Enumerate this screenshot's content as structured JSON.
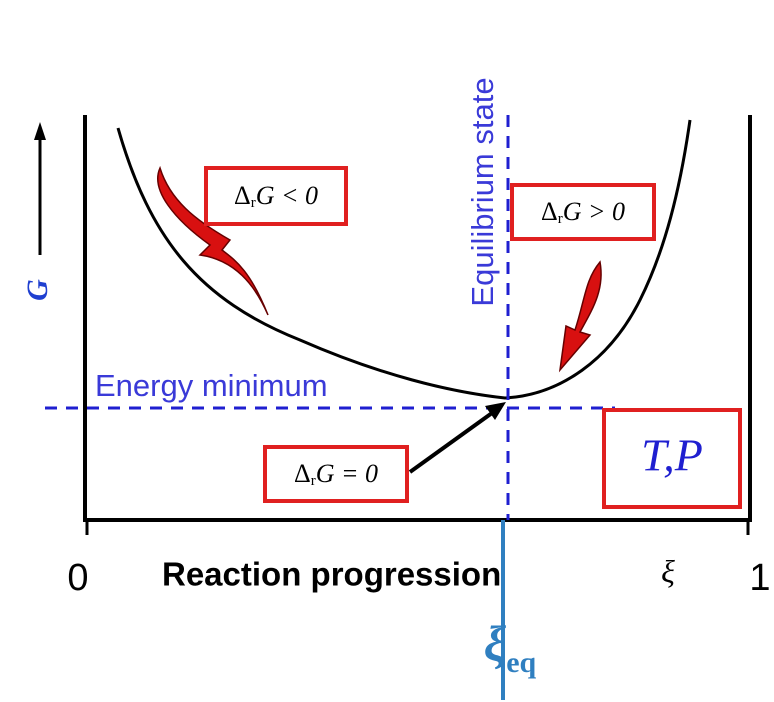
{
  "axis": {
    "y_label": "G",
    "origin_label": "0",
    "end_label": "1",
    "x_label": "Reaction progression",
    "x_symbol": "ξ"
  },
  "annotations": {
    "equilibrium": "Equilibrium state",
    "minimum": "Energy minimum",
    "conditions": "T,P"
  },
  "boxes": [
    {
      "delta": "Δ",
      "sub": "r",
      "rest": "G < 0"
    },
    {
      "delta": "Δ",
      "sub": "r",
      "rest": "G > 0"
    },
    {
      "delta": "Δ",
      "sub": "r",
      "rest": "G = 0"
    }
  ],
  "equilibrium_marker": {
    "symbol": "ξ",
    "sub": "eq"
  }
}
